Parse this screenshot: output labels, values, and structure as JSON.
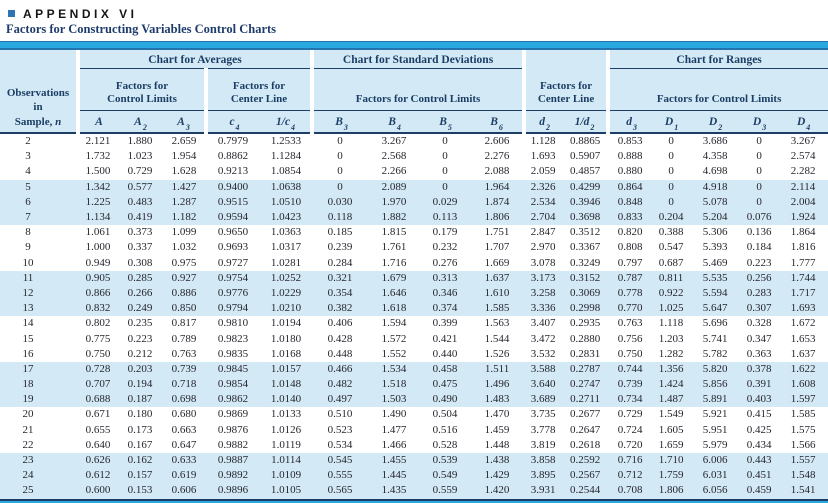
{
  "page": {
    "appendix_label": "APPENDIX VI",
    "subtitle": "Factors for Constructing Variables Control Charts"
  },
  "colors": {
    "accent_bar": "#29a8e0",
    "header_background": "#d3e9f5",
    "stripe_background": "#d3e9f5",
    "navy_text": "#1c3e66",
    "bullet_blue": "#2e74b6"
  },
  "table": {
    "observations": {
      "line1": "Observations",
      "line2": "in",
      "line3_label": "Sample,",
      "line3_var": "n"
    },
    "groups": [
      {
        "label": "Chart for Averages"
      },
      {
        "label": "Chart for Standard Deviations"
      },
      {
        "label": "Chart for Ranges"
      }
    ],
    "subheaders": {
      "factors_for": "Factors for",
      "control_limits": "Control Limits",
      "center_line": "Center Line",
      "factors_for_control_limits": "Factors for Control Limits"
    },
    "columns": [
      {
        "id": "A",
        "pre": "",
        "base": "A",
        "sub": ""
      },
      {
        "id": "A2",
        "pre": "",
        "base": "A",
        "sub": "2"
      },
      {
        "id": "A3",
        "pre": "",
        "base": "A",
        "sub": "3"
      },
      {
        "id": "c4",
        "pre": "",
        "base": "c",
        "sub": "4"
      },
      {
        "id": "1c4",
        "pre": "1/",
        "base": "c",
        "sub": "4"
      },
      {
        "id": "B3",
        "pre": "",
        "base": "B",
        "sub": "3"
      },
      {
        "id": "B4",
        "pre": "",
        "base": "B",
        "sub": "4"
      },
      {
        "id": "B5",
        "pre": "",
        "base": "B",
        "sub": "5"
      },
      {
        "id": "B6",
        "pre": "",
        "base": "B",
        "sub": "6"
      },
      {
        "id": "d2",
        "pre": "",
        "base": "d",
        "sub": "2"
      },
      {
        "id": "1d2",
        "pre": "1/",
        "base": "d",
        "sub": "2"
      },
      {
        "id": "d3",
        "pre": "",
        "base": "d",
        "sub": "3"
      },
      {
        "id": "D1",
        "pre": "",
        "base": "D",
        "sub": "1"
      },
      {
        "id": "D2",
        "pre": "",
        "base": "D",
        "sub": "2"
      },
      {
        "id": "D3",
        "pre": "",
        "base": "D",
        "sub": "3"
      },
      {
        "id": "D4",
        "pre": "",
        "base": "D",
        "sub": "4"
      }
    ],
    "rows": [
      [
        "2",
        "2.121",
        "1.880",
        "2.659",
        "0.7979",
        "1.2533",
        "0",
        "3.267",
        "0",
        "2.606",
        "1.128",
        "0.8865",
        "0.853",
        "0",
        "3.686",
        "0",
        "3.267"
      ],
      [
        "3",
        "1.732",
        "1.023",
        "1.954",
        "0.8862",
        "1.1284",
        "0",
        "2.568",
        "0",
        "2.276",
        "1.693",
        "0.5907",
        "0.888",
        "0",
        "4.358",
        "0",
        "2.574"
      ],
      [
        "4",
        "1.500",
        "0.729",
        "1.628",
        "0.9213",
        "1.0854",
        "0",
        "2.266",
        "0",
        "2.088",
        "2.059",
        "0.4857",
        "0.880",
        "0",
        "4.698",
        "0",
        "2.282"
      ],
      [
        "5",
        "1.342",
        "0.577",
        "1.427",
        "0.9400",
        "1.0638",
        "0",
        "2.089",
        "0",
        "1.964",
        "2.326",
        "0.4299",
        "0.864",
        "0",
        "4.918",
        "0",
        "2.114"
      ],
      [
        "6",
        "1.225",
        "0.483",
        "1.287",
        "0.9515",
        "1.0510",
        "0.030",
        "1.970",
        "0.029",
        "1.874",
        "2.534",
        "0.3946",
        "0.848",
        "0",
        "5.078",
        "0",
        "2.004"
      ],
      [
        "7",
        "1.134",
        "0.419",
        "1.182",
        "0.9594",
        "1.0423",
        "0.118",
        "1.882",
        "0.113",
        "1.806",
        "2.704",
        "0.3698",
        "0.833",
        "0.204",
        "5.204",
        "0.076",
        "1.924"
      ],
      [
        "8",
        "1.061",
        "0.373",
        "1.099",
        "0.9650",
        "1.0363",
        "0.185",
        "1.815",
        "0.179",
        "1.751",
        "2.847",
        "0.3512",
        "0.820",
        "0.388",
        "5.306",
        "0.136",
        "1.864"
      ],
      [
        "9",
        "1.000",
        "0.337",
        "1.032",
        "0.9693",
        "1.0317",
        "0.239",
        "1.761",
        "0.232",
        "1.707",
        "2.970",
        "0.3367",
        "0.808",
        "0.547",
        "5.393",
        "0.184",
        "1.816"
      ],
      [
        "10",
        "0.949",
        "0.308",
        "0.975",
        "0.9727",
        "1.0281",
        "0.284",
        "1.716",
        "0.276",
        "1.669",
        "3.078",
        "0.3249",
        "0.797",
        "0.687",
        "5.469",
        "0.223",
        "1.777"
      ],
      [
        "11",
        "0.905",
        "0.285",
        "0.927",
        "0.9754",
        "1.0252",
        "0.321",
        "1.679",
        "0.313",
        "1.637",
        "3.173",
        "0.3152",
        "0.787",
        "0.811",
        "5.535",
        "0.256",
        "1.744"
      ],
      [
        "12",
        "0.866",
        "0.266",
        "0.886",
        "0.9776",
        "1.0229",
        "0.354",
        "1.646",
        "0.346",
        "1.610",
        "3.258",
        "0.3069",
        "0.778",
        "0.922",
        "5.594",
        "0.283",
        "1.717"
      ],
      [
        "13",
        "0.832",
        "0.249",
        "0.850",
        "0.9794",
        "1.0210",
        "0.382",
        "1.618",
        "0.374",
        "1.585",
        "3.336",
        "0.2998",
        "0.770",
        "1.025",
        "5.647",
        "0.307",
        "1.693"
      ],
      [
        "14",
        "0.802",
        "0.235",
        "0.817",
        "0.9810",
        "1.0194",
        "0.406",
        "1.594",
        "0.399",
        "1.563",
        "3.407",
        "0.2935",
        "0.763",
        "1.118",
        "5.696",
        "0.328",
        "1.672"
      ],
      [
        "15",
        "0.775",
        "0.223",
        "0.789",
        "0.9823",
        "1.0180",
        "0.428",
        "1.572",
        "0.421",
        "1.544",
        "3.472",
        "0.2880",
        "0.756",
        "1.203",
        "5.741",
        "0.347",
        "1.653"
      ],
      [
        "16",
        "0.750",
        "0.212",
        "0.763",
        "0.9835",
        "1.0168",
        "0.448",
        "1.552",
        "0.440",
        "1.526",
        "3.532",
        "0.2831",
        "0.750",
        "1.282",
        "5.782",
        "0.363",
        "1.637"
      ],
      [
        "17",
        "0.728",
        "0.203",
        "0.739",
        "0.9845",
        "1.0157",
        "0.466",
        "1.534",
        "0.458",
        "1.511",
        "3.588",
        "0.2787",
        "0.744",
        "1.356",
        "5.820",
        "0.378",
        "1.622"
      ],
      [
        "18",
        "0.707",
        "0.194",
        "0.718",
        "0.9854",
        "1.0148",
        "0.482",
        "1.518",
        "0.475",
        "1.496",
        "3.640",
        "0.2747",
        "0.739",
        "1.424",
        "5.856",
        "0.391",
        "1.608"
      ],
      [
        "19",
        "0.688",
        "0.187",
        "0.698",
        "0.9862",
        "1.0140",
        "0.497",
        "1.503",
        "0.490",
        "1.483",
        "3.689",
        "0.2711",
        "0.734",
        "1.487",
        "5.891",
        "0.403",
        "1.597"
      ],
      [
        "20",
        "0.671",
        "0.180",
        "0.680",
        "0.9869",
        "1.0133",
        "0.510",
        "1.490",
        "0.504",
        "1.470",
        "3.735",
        "0.2677",
        "0.729",
        "1.549",
        "5.921",
        "0.415",
        "1.585"
      ],
      [
        "21",
        "0.655",
        "0.173",
        "0.663",
        "0.9876",
        "1.0126",
        "0.523",
        "1.477",
        "0.516",
        "1.459",
        "3.778",
        "0.2647",
        "0.724",
        "1.605",
        "5.951",
        "0.425",
        "1.575"
      ],
      [
        "22",
        "0.640",
        "0.167",
        "0.647",
        "0.9882",
        "1.0119",
        "0.534",
        "1.466",
        "0.528",
        "1.448",
        "3.819",
        "0.2618",
        "0.720",
        "1.659",
        "5.979",
        "0.434",
        "1.566"
      ],
      [
        "23",
        "0.626",
        "0.162",
        "0.633",
        "0.9887",
        "1.0114",
        "0.545",
        "1.455",
        "0.539",
        "1.438",
        "3.858",
        "0.2592",
        "0.716",
        "1.710",
        "6.006",
        "0.443",
        "1.557"
      ],
      [
        "24",
        "0.612",
        "0.157",
        "0.619",
        "0.9892",
        "1.0109",
        "0.555",
        "1.445",
        "0.549",
        "1.429",
        "3.895",
        "0.2567",
        "0.712",
        "1.759",
        "6.031",
        "0.451",
        "1.548"
      ],
      [
        "25",
        "0.600",
        "0.153",
        "0.606",
        "0.9896",
        "1.0105",
        "0.565",
        "1.435",
        "0.559",
        "1.420",
        "3.931",
        "0.2544",
        "0.708",
        "1.806",
        "6.056",
        "0.459",
        "1.541"
      ]
    ]
  }
}
